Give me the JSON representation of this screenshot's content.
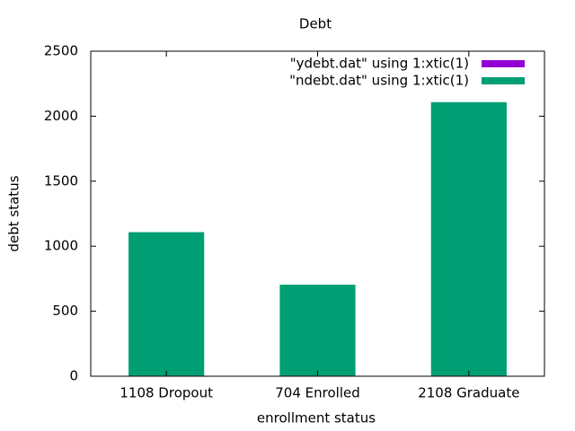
{
  "chart_data": {
    "type": "bar",
    "title": "Debt",
    "xlabel": "enrollment status",
    "ylabel": "debt status",
    "categories": [
      "1108 Dropout",
      "704 Enrolled",
      "2108 Graduate"
    ],
    "series": [
      {
        "name": "\"ydebt.dat\" using 1:xtic(1)",
        "color": "#9400d3",
        "values": [
          null,
          null,
          null
        ]
      },
      {
        "name": "\"ndebt.dat\" using 1:xtic(1)",
        "color": "#009e73",
        "values": [
          1108,
          704,
          2108
        ]
      }
    ],
    "ylim": [
      0,
      2500
    ],
    "yticks": [
      0,
      500,
      1000,
      1500,
      2000,
      2500
    ],
    "legend": "top-right"
  }
}
